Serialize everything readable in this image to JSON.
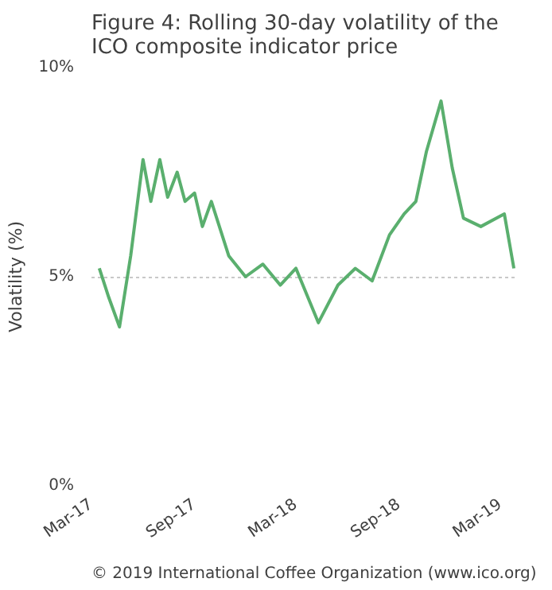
{
  "chart_data": {
    "type": "line",
    "title": "Figure 4: Rolling 30-day volatility of the ICO composite indicator price",
    "ylabel": "Volatility (%)",
    "annotations": [
      "© 2019 International Coffee Organization (www.ico.org)"
    ],
    "x": [
      "2017-03-15",
      "2017-04-01",
      "2017-04-20",
      "2017-05-10",
      "2017-06-01",
      "2017-06-15",
      "2017-07-01",
      "2017-07-15",
      "2017-08-01",
      "2017-08-15",
      "2017-09-01",
      "2017-09-15",
      "2017-10-01",
      "2017-11-01",
      "2017-12-01",
      "2018-01-01",
      "2018-02-01",
      "2018-03-01",
      "2018-04-10",
      "2018-05-15",
      "2018-06-15",
      "2018-07-15",
      "2018-08-15",
      "2018-09-10",
      "2018-10-01",
      "2018-10-20",
      "2018-11-15",
      "2018-12-05",
      "2018-12-25",
      "2019-01-25",
      "2019-03-08",
      "2019-03-25"
    ],
    "series": [
      {
        "color": "#5aaf6e",
        "values": [
          5.2,
          4.5,
          3.8,
          5.5,
          7.8,
          6.8,
          7.8,
          6.9,
          7.5,
          6.8,
          7.0,
          6.2,
          6.8,
          5.5,
          5.0,
          5.3,
          4.8,
          5.2,
          3.9,
          4.8,
          5.2,
          4.9,
          6.0,
          6.5,
          6.8,
          8.0,
          9.2,
          7.6,
          6.4,
          6.2,
          6.5,
          5.2
        ]
      }
    ],
    "xlim": [
      "2017-03-01",
      "2019-04-01"
    ],
    "xticks": [
      {
        "value": "2017-03-01",
        "label": "Mar-17"
      },
      {
        "value": "2017-09-01",
        "label": "Sep-17"
      },
      {
        "value": "2018-03-01",
        "label": "Mar-18"
      },
      {
        "value": "2018-09-01",
        "label": "Sep-18"
      },
      {
        "value": "2019-03-01",
        "label": "Mar-19"
      }
    ],
    "ylim": [
      0,
      10
    ],
    "yticks": [
      {
        "value": 0,
        "label": "0%"
      },
      {
        "value": 5,
        "label": "5%"
      },
      {
        "value": 10,
        "label": "10%"
      }
    ],
    "grid": "y",
    "marker": "none",
    "line_style": "solid"
  }
}
